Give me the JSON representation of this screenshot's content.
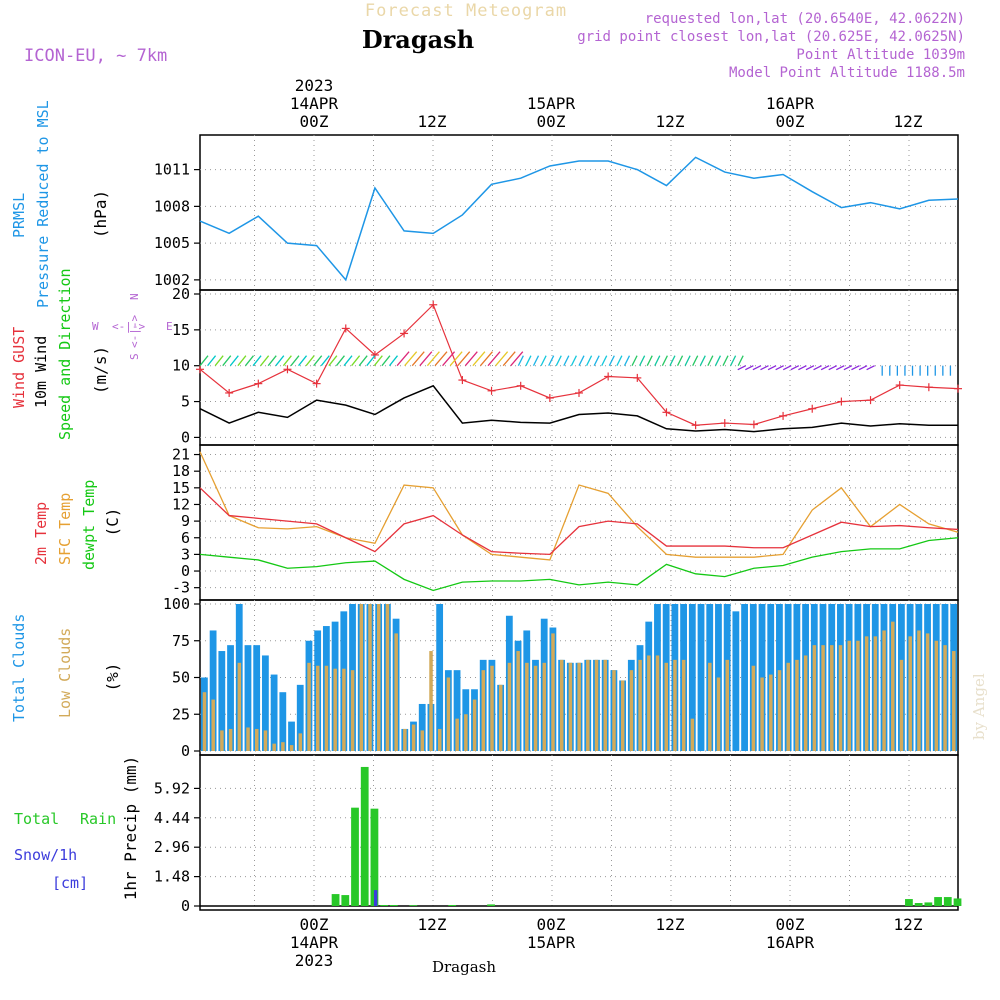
{
  "header": {
    "super_title": "Forecast Meteogram",
    "location": "Dragash",
    "model": "ICON-EU, ~ 7km",
    "requested": "requested lon,lat (20.6540E, 42.0622N)",
    "grid": "grid point closest lon,lat (20.625E, 42.0625N)",
    "point_alt": "Point Altitude 1039m",
    "model_alt": "Model Point Altitude 1188.5m",
    "bottom_caption": "Dragash",
    "watermark": "by Angel"
  },
  "colors": {
    "pressure": "#1e96e6",
    "gust": "#e6323c",
    "wind": "#000000",
    "temp2m": "#e6323c",
    "sfc": "#e6a032",
    "dewpt": "#14c814",
    "total_clouds": "#1e96e6",
    "low_clouds": "#d2aa5a",
    "rain": "#28c828",
    "snow": "#3c3cdc",
    "header": "#b464d2"
  },
  "chart_data": [
    {
      "id": "pressure",
      "type": "line",
      "title": "PRMSL Pressure Reduced to MSL",
      "ylabel": "(hPa)",
      "ylim": [
        1001.5,
        1013.5
      ],
      "yticks": [
        1002,
        1005,
        1008,
        1011
      ],
      "x_hours": [
        0,
        3,
        6,
        9,
        12,
        15,
        18,
        21,
        24,
        27,
        30,
        33,
        36,
        39,
        42,
        45,
        48,
        51,
        54,
        57,
        60,
        63,
        66,
        69,
        72,
        75,
        78
      ],
      "values": [
        1006.8,
        1005.8,
        1007.2,
        1005.0,
        1004.8,
        1002.0,
        1009.5,
        1006.0,
        1005.8,
        1007.3,
        1009.8,
        1010.3,
        1011.3,
        1011.7,
        1011.7,
        1011.0,
        1009.7,
        1012.0,
        1010.8,
        1010.3,
        1010.6,
        1009.2,
        1007.9,
        1008.3,
        1007.8,
        1008.5,
        1008.6
      ],
      "ylabel_left": [
        "PRMSL",
        "Pressure Reduced to MSL"
      ]
    },
    {
      "id": "wind",
      "type": "line",
      "ylabel": "(m/s)",
      "ylim": [
        -0.5,
        20
      ],
      "yticks": [
        0,
        5,
        10,
        15,
        20
      ],
      "labels": {
        "gust": "Wind GUST",
        "wind": "10m Wind",
        "dir": "Speed and Direction"
      },
      "compass": {
        "n": "N",
        "w": "W",
        "e": "E",
        "s": "S",
        "arrows": "<-|->"
      },
      "x_hours": [
        0,
        3,
        6,
        9,
        12,
        15,
        18,
        21,
        24,
        27,
        30,
        33,
        36,
        39,
        42,
        45,
        48,
        51,
        54,
        57,
        60,
        63,
        66,
        69,
        72,
        75,
        78
      ],
      "gust": [
        9.5,
        6.2,
        7.5,
        9.5,
        7.5,
        15.2,
        11.5,
        14.5,
        18.5,
        8.0,
        6.5,
        7.2,
        5.5,
        6.2,
        8.5,
        8.3,
        3.5,
        1.7,
        2.0,
        1.8,
        3.0,
        4.0,
        5.0,
        5.2,
        7.3,
        7.0,
        6.8
      ],
      "wind": [
        4.0,
        2.0,
        3.5,
        2.8,
        5.2,
        4.5,
        3.2,
        5.5,
        7.2,
        2.0,
        2.4,
        2.1,
        2.0,
        3.2,
        3.4,
        3.0,
        1.2,
        0.9,
        1.1,
        0.8,
        1.2,
        1.4,
        2.0,
        1.6,
        1.9,
        1.7,
        1.7
      ]
    },
    {
      "id": "temperature",
      "type": "line",
      "ylabel": "(C)",
      "ylim": [
        -4.5,
        22
      ],
      "yticks": [
        -3,
        0,
        3,
        6,
        9,
        12,
        15,
        18,
        21
      ],
      "labels": {
        "t2m": "2m Temp",
        "sfc": "SFC Temp",
        "dew": "dewpt Temp"
      },
      "x_hours": [
        0,
        3,
        6,
        9,
        12,
        15,
        18,
        21,
        24,
        27,
        30,
        33,
        36,
        39,
        42,
        45,
        48,
        51,
        54,
        57,
        60,
        63,
        66,
        69,
        72,
        75,
        78
      ],
      "t2m": [
        15.0,
        10.0,
        9.5,
        9.0,
        8.5,
        6.0,
        3.5,
        8.5,
        10.0,
        6.5,
        3.5,
        3.2,
        3.0,
        8.0,
        9.0,
        8.5,
        4.5,
        4.5,
        4.5,
        4.2,
        4.2,
        6.5,
        8.8,
        8.0,
        8.2,
        7.8,
        7.5
      ],
      "sfc": [
        21.5,
        10.0,
        7.8,
        7.6,
        8.0,
        6.0,
        5.0,
        15.5,
        15.0,
        6.5,
        3.0,
        2.5,
        2.0,
        15.5,
        14.0,
        8.0,
        3.0,
        2.5,
        2.5,
        2.5,
        3.0,
        11.0,
        15.0,
        8.0,
        12.0,
        8.5,
        7.0
      ],
      "dew": [
        3.0,
        2.5,
        2.0,
        0.5,
        0.8,
        1.5,
        1.8,
        -1.5,
        -3.5,
        -2.0,
        -1.8,
        -1.8,
        -1.5,
        -2.5,
        -2.0,
        -2.5,
        1.2,
        -0.5,
        -1.0,
        0.5,
        1.0,
        2.5,
        3.5,
        4.0,
        4.0,
        5.5,
        6.0
      ]
    },
    {
      "id": "clouds",
      "type": "bar",
      "ylabel": "(%)",
      "ylim": [
        0,
        100
      ],
      "yticks": [
        0,
        25,
        50,
        75,
        100
      ],
      "labels": {
        "total": "Total Clouds",
        "low": "Low Clouds"
      },
      "total": [
        50,
        82,
        68,
        72,
        100,
        72,
        72,
        65,
        52,
        40,
        20,
        45,
        75,
        82,
        85,
        88,
        95,
        100,
        100,
        100,
        100,
        100,
        90,
        15,
        20,
        32,
        32,
        100,
        55,
        55,
        42,
        42,
        62,
        62,
        45,
        92,
        75,
        82,
        62,
        90,
        84,
        62,
        60,
        60,
        62,
        62,
        62,
        55,
        48,
        62,
        72,
        88,
        100,
        100,
        100,
        100,
        100,
        100,
        100,
        100,
        100,
        95,
        100,
        100,
        100,
        100,
        100,
        100,
        100,
        100,
        100,
        100,
        100,
        100,
        100,
        100,
        100,
        100,
        100,
        100,
        100,
        100,
        100,
        100,
        100,
        100,
        100
      ],
      "low": [
        40,
        35,
        14,
        15,
        60,
        16,
        15,
        14,
        5,
        6,
        4,
        12,
        60,
        58,
        58,
        56,
        56,
        55,
        100,
        100,
        100,
        100,
        80,
        15,
        18,
        14,
        68,
        15,
        50,
        22,
        25,
        35,
        55,
        58,
        45,
        60,
        68,
        60,
        58,
        60,
        80,
        62,
        60,
        60,
        62,
        62,
        62,
        55,
        48,
        55,
        62,
        65,
        65,
        60,
        62,
        62,
        22,
        0,
        60,
        50,
        62,
        0,
        0,
        58,
        50,
        52,
        55,
        60,
        62,
        65,
        72,
        72,
        72,
        72,
        75,
        75,
        78,
        78,
        82,
        88,
        62,
        78,
        82,
        80,
        75,
        72,
        68
      ],
      "total_low_note": "bars at hourly steps"
    },
    {
      "id": "precip",
      "type": "bar",
      "ylabel": "1hr Precip (mm)",
      "ylim": [
        0,
        7.4
      ],
      "yticks": [
        0,
        1.48,
        2.96,
        4.44,
        5.92
      ],
      "labels": {
        "rain": "Total",
        "rain2": "Rain",
        "snow": "Snow/1h",
        "unit": "[cm]"
      },
      "rain_hours": [
        14,
        15,
        16,
        17,
        18,
        19,
        20,
        22,
        26,
        30,
        73,
        74,
        75,
        76,
        77,
        78
      ],
      "rain_values": [
        0.6,
        0.55,
        4.95,
        7.0,
        4.9,
        0.05,
        0.05,
        0.04,
        0.05,
        0.08,
        0.35,
        0.15,
        0.18,
        0.45,
        0.45,
        0.38
      ],
      "snow_hours": [
        18
      ],
      "snow_values": [
        0.8
      ]
    }
  ],
  "time_axis": {
    "year": "2023",
    "top_labels": [
      "00Z",
      "12Z",
      "00Z",
      "12Z",
      "00Z",
      "12Z"
    ],
    "top_dates": [
      "14APR",
      "15APR",
      "16APR"
    ],
    "bottom_labels": [
      "00Z",
      "12Z",
      "00Z",
      "12Z",
      "00Z",
      "12Z"
    ],
    "bottom_dates": [
      "14APR",
      "15APR",
      "16APR"
    ]
  }
}
